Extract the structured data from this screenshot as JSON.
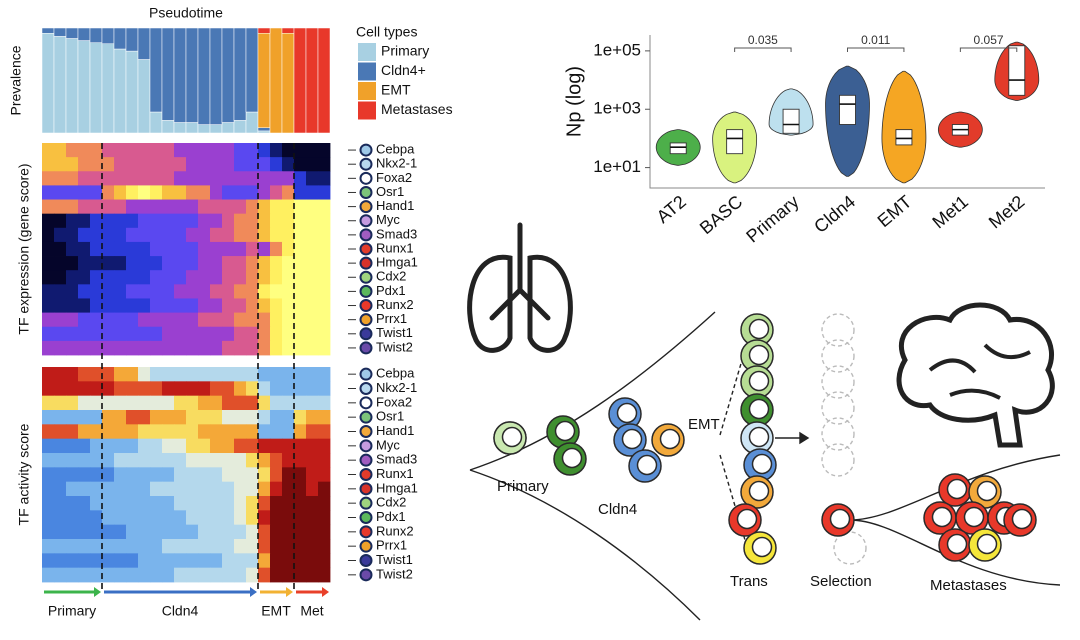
{
  "chart_data": [
    {
      "type": "stacked-bar",
      "title": "Pseudotime",
      "ylabel": "Prevalence",
      "legend_title": "Cell types",
      "ylim": [
        0,
        100
      ],
      "series": [
        {
          "name": "Primary",
          "color": "#a8d0e2",
          "values": [
            95,
            92,
            90,
            88,
            86,
            85,
            80,
            78,
            70,
            20,
            12,
            10,
            10,
            8,
            8,
            10,
            12,
            20,
            2,
            0,
            0,
            0,
            0,
            0
          ]
        },
        {
          "name": "Cldn4+",
          "color": "#4a78b5",
          "values": [
            5,
            8,
            10,
            12,
            14,
            15,
            20,
            22,
            30,
            80,
            88,
            90,
            90,
            92,
            92,
            90,
            88,
            80,
            3,
            0,
            0,
            0,
            0,
            0
          ]
        },
        {
          "name": "EMT",
          "color": "#f0a12a",
          "values": [
            0,
            0,
            0,
            0,
            0,
            0,
            0,
            0,
            0,
            0,
            0,
            0,
            0,
            0,
            0,
            0,
            0,
            0,
            90,
            100,
            95,
            0,
            0,
            0
          ]
        },
        {
          "name": "Metastases",
          "color": "#e8382a",
          "values": [
            0,
            0,
            0,
            0,
            0,
            0,
            0,
            0,
            0,
            0,
            0,
            0,
            0,
            0,
            0,
            0,
            0,
            0,
            5,
            0,
            5,
            100,
            100,
            100
          ]
        }
      ]
    },
    {
      "type": "heatmap",
      "palette": "expression",
      "ylabel": "TF expression (gene score)",
      "rows": [
        "Cebpa",
        "Nkx2-1",
        "Foxa2",
        "Osr1",
        "Hand1",
        "Myc",
        "Smad3",
        "Runx1",
        "Hmga1",
        "Cdx2",
        "Pdx1",
        "Runx2",
        "Prrx1",
        "Twist1",
        "Twist2"
      ],
      "row_colors": [
        "#9fc9e8",
        "#b8d8ee",
        "#ffffff",
        "#7cc47a",
        "#f2a93b",
        "#c59be0",
        "#a05cc0",
        "#e23b2a",
        "#d8322a",
        "#9fd47f",
        "#5cb85c",
        "#e8382a",
        "#f0a12a",
        "#3a3a9a",
        "#6a4aa8"
      ],
      "matrix": [
        [
          7,
          7,
          6,
          6,
          6,
          5,
          5,
          5,
          5,
          5,
          5,
          4,
          4,
          4,
          4,
          4,
          3,
          3,
          2,
          1,
          0,
          0,
          0,
          0
        ],
        [
          7,
          7,
          7,
          6,
          6,
          6,
          5,
          5,
          5,
          5,
          5,
          5,
          4,
          4,
          4,
          4,
          3,
          3,
          3,
          2,
          1,
          0,
          0,
          0
        ],
        [
          6,
          6,
          6,
          5,
          5,
          5,
          5,
          5,
          5,
          5,
          5,
          4,
          4,
          4,
          4,
          4,
          4,
          4,
          4,
          4,
          4,
          2,
          1,
          1
        ],
        [
          3,
          3,
          3,
          3,
          3,
          6,
          7,
          8,
          9,
          8,
          7,
          7,
          6,
          6,
          4,
          3,
          3,
          3,
          4,
          5,
          6,
          2,
          2,
          2
        ],
        [
          6,
          6,
          6,
          5,
          5,
          5,
          5,
          4,
          4,
          4,
          4,
          4,
          4,
          5,
          5,
          5,
          5,
          6,
          7,
          8,
          8,
          9,
          9,
          9
        ],
        [
          0,
          0,
          1,
          1,
          2,
          2,
          2,
          2,
          3,
          3,
          3,
          3,
          3,
          4,
          4,
          5,
          6,
          6,
          7,
          8,
          8,
          9,
          9,
          9
        ],
        [
          0,
          1,
          1,
          2,
          2,
          2,
          2,
          3,
          3,
          3,
          3,
          3,
          4,
          4,
          5,
          5,
          6,
          6,
          7,
          8,
          8,
          9,
          9,
          9
        ],
        [
          0,
          0,
          1,
          1,
          2,
          2,
          2,
          2,
          2,
          3,
          3,
          3,
          3,
          4,
          4,
          4,
          4,
          5,
          4,
          6,
          8,
          9,
          9,
          9
        ],
        [
          0,
          0,
          0,
          1,
          1,
          1,
          1,
          2,
          2,
          2,
          3,
          3,
          3,
          4,
          4,
          5,
          5,
          6,
          7,
          8,
          9,
          9,
          9,
          9
        ],
        [
          0,
          0,
          1,
          1,
          2,
          2,
          2,
          2,
          2,
          3,
          3,
          3,
          4,
          4,
          4,
          5,
          5,
          6,
          7,
          8,
          9,
          9,
          9,
          9
        ],
        [
          1,
          1,
          1,
          2,
          2,
          2,
          2,
          3,
          3,
          3,
          3,
          4,
          4,
          4,
          5,
          5,
          6,
          6,
          8,
          9,
          9,
          9,
          9,
          9
        ],
        [
          1,
          1,
          1,
          1,
          2,
          2,
          2,
          2,
          2,
          3,
          3,
          3,
          3,
          4,
          4,
          5,
          5,
          6,
          7,
          8,
          9,
          9,
          9,
          9
        ],
        [
          4,
          4,
          4,
          3,
          3,
          3,
          3,
          3,
          4,
          4,
          4,
          4,
          4,
          5,
          5,
          5,
          6,
          6,
          6,
          8,
          9,
          9,
          9,
          9
        ],
        [
          3,
          3,
          3,
          3,
          3,
          3,
          3,
          3,
          3,
          3,
          4,
          4,
          4,
          4,
          4,
          4,
          5,
          5,
          6,
          8,
          9,
          9,
          9,
          9
        ],
        [
          4,
          4,
          4,
          4,
          4,
          4,
          4,
          4,
          4,
          4,
          4,
          4,
          4,
          4,
          4,
          5,
          5,
          5,
          6,
          8,
          9,
          9,
          9,
          9
        ]
      ]
    },
    {
      "type": "heatmap",
      "palette": "activity",
      "ylabel": "TF activity score",
      "rows": [
        "Cebpa",
        "Nkx2-1",
        "Foxa2",
        "Osr1",
        "Hand1",
        "Myc",
        "Smad3",
        "Runx1",
        "Hmga1",
        "Cdx2",
        "Pdx1",
        "Runx2",
        "Prrx1",
        "Twist1",
        "Twist2"
      ],
      "row_colors": [
        "#9fc9e8",
        "#b8d8ee",
        "#ffffff",
        "#7cc47a",
        "#f2a93b",
        "#c59be0",
        "#a05cc0",
        "#e23b2a",
        "#d8322a",
        "#9fd47f",
        "#5cb85c",
        "#e8382a",
        "#f0a12a",
        "#3a3a9a",
        "#6a4aa8"
      ],
      "matrix": [
        [
          8,
          8,
          8,
          7,
          7,
          7,
          6,
          6,
          4,
          3,
          3,
          3,
          3,
          3,
          3,
          3,
          3,
          3,
          2,
          2,
          2,
          2,
          2,
          2
        ],
        [
          8,
          8,
          8,
          8,
          8,
          8,
          7,
          7,
          7,
          7,
          8,
          8,
          8,
          8,
          7,
          7,
          6,
          5,
          3,
          2,
          2,
          2,
          2,
          2
        ],
        [
          5,
          5,
          5,
          4,
          4,
          4,
          4,
          4,
          4,
          4,
          4,
          5,
          5,
          6,
          6,
          7,
          7,
          7,
          5,
          3,
          3,
          3,
          3,
          3
        ],
        [
          2,
          2,
          2,
          2,
          2,
          6,
          6,
          7,
          7,
          6,
          6,
          6,
          5,
          5,
          5,
          4,
          4,
          4,
          3,
          2,
          2,
          5,
          6,
          6
        ],
        [
          7,
          7,
          7,
          6,
          6,
          6,
          6,
          6,
          5,
          5,
          5,
          5,
          5,
          6,
          6,
          6,
          6,
          6,
          2,
          2,
          2,
          6,
          7,
          7
        ],
        [
          1,
          1,
          1,
          1,
          2,
          2,
          2,
          2,
          3,
          3,
          4,
          4,
          5,
          5,
          6,
          6,
          7,
          7,
          8,
          8,
          8,
          8,
          8,
          8
        ],
        [
          2,
          2,
          2,
          2,
          2,
          2,
          3,
          3,
          3,
          3,
          3,
          3,
          4,
          4,
          4,
          4,
          4,
          5,
          6,
          7,
          8,
          8,
          8,
          8
        ],
        [
          1,
          1,
          1,
          1,
          1,
          1,
          2,
          2,
          2,
          2,
          2,
          3,
          3,
          3,
          3,
          4,
          4,
          4,
          5,
          7,
          9,
          9,
          8,
          8
        ],
        [
          1,
          1,
          2,
          2,
          2,
          2,
          2,
          2,
          2,
          3,
          3,
          3,
          3,
          3,
          3,
          3,
          4,
          4,
          6,
          8,
          9,
          9,
          8,
          9
        ],
        [
          1,
          1,
          1,
          1,
          2,
          2,
          2,
          2,
          2,
          2,
          2,
          3,
          3,
          3,
          3,
          3,
          4,
          5,
          7,
          9,
          9,
          9,
          9,
          9
        ],
        [
          1,
          1,
          1,
          1,
          1,
          2,
          2,
          2,
          2,
          2,
          2,
          2,
          3,
          3,
          3,
          3,
          4,
          5,
          8,
          9,
          9,
          9,
          9,
          9
        ],
        [
          1,
          1,
          1,
          1,
          1,
          1,
          1,
          2,
          2,
          2,
          2,
          2,
          2,
          3,
          3,
          3,
          3,
          4,
          7,
          9,
          9,
          9,
          9,
          9
        ],
        [
          2,
          2,
          2,
          2,
          2,
          2,
          2,
          2,
          2,
          2,
          3,
          3,
          3,
          3,
          3,
          3,
          4,
          4,
          7,
          9,
          9,
          9,
          9,
          9
        ],
        [
          1,
          1,
          1,
          1,
          1,
          1,
          1,
          1,
          2,
          2,
          2,
          2,
          2,
          2,
          2,
          3,
          3,
          3,
          6,
          9,
          9,
          9,
          9,
          9
        ],
        [
          2,
          2,
          2,
          2,
          2,
          2,
          2,
          2,
          2,
          2,
          2,
          3,
          3,
          3,
          3,
          3,
          3,
          4,
          7,
          9,
          9,
          9,
          9,
          9
        ]
      ],
      "stages": [
        {
          "name": "Primary",
          "end": 5,
          "color": "#3cb44b"
        },
        {
          "name": "Cldn4",
          "end": 18,
          "color": "#3a6fc4"
        },
        {
          "name": "EMT",
          "end": 21,
          "color": "#f2b233"
        },
        {
          "name": "Met",
          "end": 24,
          "color": "#e8402a"
        }
      ]
    },
    {
      "type": "violin",
      "ylabel": "Np (log)",
      "log_scale": true,
      "ylim": [
        2,
        350000
      ],
      "yticks": [
        {
          "value": 10,
          "label": "1e+01"
        },
        {
          "value": 1000,
          "label": "1e+03"
        },
        {
          "value": 100000,
          "label": "1e+05"
        }
      ],
      "categories": [
        "AT2",
        "BASC",
        "Primary",
        "Cldn4",
        "EMT",
        "Met1",
        "Met2"
      ],
      "colors": [
        "#4daf4a",
        "#d9f27f",
        "#bde0ee",
        "#3b5f93",
        "#f5a623",
        "#e23b2a",
        "#e23b2a"
      ],
      "min": [
        12,
        3,
        130,
        5,
        3,
        50,
        2000
      ],
      "q1": [
        30,
        30,
        150,
        300,
        60,
        130,
        3000
      ],
      "median": [
        50,
        100,
        300,
        1500,
        100,
        200,
        10000
      ],
      "q3": [
        70,
        200,
        1000,
        3000,
        200,
        300,
        150000
      ],
      "max": [
        200,
        800,
        5000,
        30000,
        20000,
        800,
        200000
      ],
      "comparisons": [
        {
          "groups": [
            "BASC",
            "Primary"
          ],
          "p": 0.035
        },
        {
          "groups": [
            "Cldn4",
            "EMT"
          ],
          "p": 0.011
        },
        {
          "groups": [
            "Met1",
            "Met2"
          ],
          "p": 0.057
        }
      ]
    }
  ],
  "diagram": {
    "labels": {
      "primary": "Primary",
      "cldn4": "Cldn4",
      "emt": "EMT",
      "trans": "Trans",
      "selection": "Selection",
      "metastases": "Metastases"
    }
  }
}
